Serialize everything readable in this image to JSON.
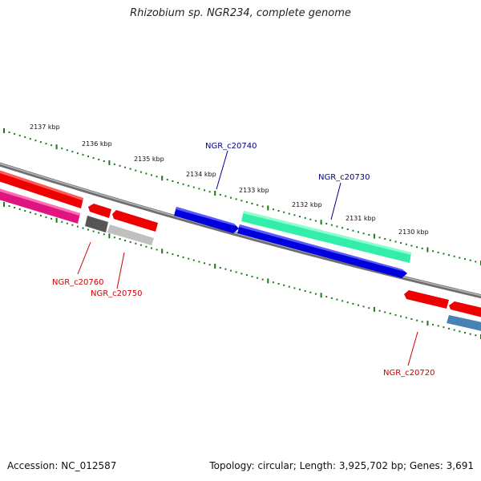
{
  "title": "Rhizobium sp. NGR234, complete genome",
  "footer": {
    "accession": "Accession: NC_012587",
    "summary": "Topology: circular; Length: 3,925,702 bp; Genes: 3,691"
  },
  "colors": {
    "tick": "#1a7a1a",
    "backbone": "#808080",
    "label_forward": "#00008b",
    "label_reverse": "#cc0000"
  },
  "scale_labels": [
    "2137 kbp",
    "2136 kbp",
    "2135 kbp",
    "2134 kbp",
    "2133 kbp",
    "2132 kbp",
    "2131 kbp",
    "2130 kbp"
  ],
  "genes": [
    {
      "name": "NGR_c20740",
      "strand": "forward",
      "color": "#0000dd"
    },
    {
      "name": "NGR_c20730",
      "strand": "forward",
      "color": "#33eeaa"
    },
    {
      "name": "NGR_c20760",
      "strand": "reverse",
      "color": "#ee0000"
    },
    {
      "name": "NGR_c20750",
      "strand": "reverse",
      "color": "#ee0000"
    },
    {
      "name": "NGR_c20720",
      "strand": "reverse",
      "color": "#ee0000"
    }
  ]
}
